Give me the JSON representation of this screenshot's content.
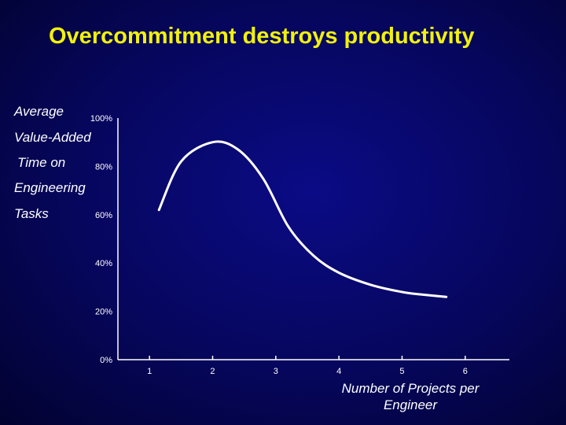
{
  "title": "Overcommitment destroys productivity",
  "chart_data": {
    "type": "line",
    "title": "Overcommitment destroys productivity",
    "ylabel_lines": [
      "Average",
      "Value-Added",
      "Time on",
      "Engineering",
      "Tasks"
    ],
    "xlabel": "Number of Projects per Engineer",
    "x_ticks": [
      "1",
      "2",
      "3",
      "4",
      "5",
      "6"
    ],
    "y_ticks": [
      "0%",
      "20%",
      "40%",
      "60%",
      "80%",
      "100%"
    ],
    "ylim": [
      0,
      100
    ],
    "xlim": [
      0.5,
      6.7
    ],
    "grid": false,
    "series": [
      {
        "name": "Productivity",
        "color": "#ffffff",
        "x": [
          1.15,
          1.5,
          2.0,
          2.4,
          2.8,
          3.2,
          3.6,
          4.0,
          4.5,
          5.0,
          5.3,
          5.7
        ],
        "y": [
          62,
          82,
          90,
          87,
          75,
          55,
          43,
          36,
          31,
          28,
          27,
          26
        ]
      }
    ]
  }
}
